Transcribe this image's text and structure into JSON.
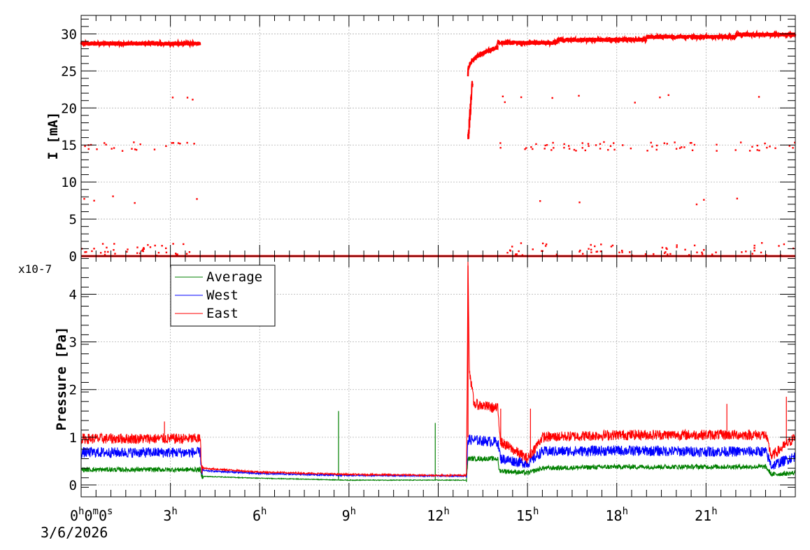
{
  "chart_data": [
    {
      "type": "scatter",
      "ylabel": "I [mA]",
      "ylim": [
        0,
        32.5
      ],
      "yticks": [
        0,
        5,
        10,
        15,
        20,
        25,
        30
      ],
      "xlim_hours": [
        0,
        24
      ],
      "grid": true,
      "series": [
        {
          "color": "#ff0000",
          "segments": [
            {
              "x": [
                0.0,
                4.0
              ],
              "y": 28.7
            },
            {
              "x": [
                13.0,
                14.0
              ],
              "y": [
                24.5,
                28.2
              ]
            },
            {
              "x": [
                14.0,
                16.0
              ],
              "y": 28.8
            },
            {
              "x": [
                16.0,
                19.0
              ],
              "y": 29.2
            },
            {
              "x": [
                19.0,
                22.0
              ],
              "y": 29.6
            },
            {
              "x": [
                22.0,
                24.0
              ],
              "y": 29.9
            }
          ],
          "outlier_levels": [
            21.3,
            14.8,
            7.5,
            1.0,
            0.0
          ],
          "gap_hours": [
            4.0,
            13.0
          ]
        }
      ]
    },
    {
      "type": "line",
      "ylabel": "Pressure [Pa]",
      "yexponent": "x10-7",
      "ylim": [
        -0.25,
        4.8
      ],
      "yticks": [
        0,
        1,
        2,
        3,
        4
      ],
      "xlim_hours": [
        0,
        24
      ],
      "grid": true,
      "legend": {
        "position": "top-left",
        "entries": [
          "Average",
          "West",
          "East"
        ]
      },
      "series": [
        {
          "name": "Average",
          "color": "#008000",
          "points": [
            [
              0,
              0.32
            ],
            [
              4,
              0.32
            ],
            [
              4.05,
              0.18
            ],
            [
              6,
              0.14
            ],
            [
              9,
              0.1
            ],
            [
              12,
              0.1
            ],
            [
              12.95,
              0.1
            ],
            [
              13.0,
              0.55
            ],
            [
              14,
              0.55
            ],
            [
              14.05,
              0.3
            ],
            [
              15,
              0.25
            ],
            [
              15.5,
              0.35
            ],
            [
              18,
              0.38
            ],
            [
              21,
              0.38
            ],
            [
              23,
              0.38
            ],
            [
              23.2,
              0.22
            ],
            [
              24,
              0.25
            ]
          ],
          "spikes": [
            [
              8.65,
              1.55
            ],
            [
              11.9,
              1.3
            ]
          ]
        },
        {
          "name": "West",
          "color": "#0000ff",
          "points": [
            [
              0,
              0.68
            ],
            [
              4,
              0.68
            ],
            [
              4.05,
              0.3
            ],
            [
              6,
              0.24
            ],
            [
              9,
              0.2
            ],
            [
              12,
              0.19
            ],
            [
              12.95,
              0.19
            ],
            [
              13.0,
              0.95
            ],
            [
              14,
              0.9
            ],
            [
              14.1,
              0.55
            ],
            [
              15,
              0.45
            ],
            [
              15.5,
              0.7
            ],
            [
              18,
              0.72
            ],
            [
              21,
              0.7
            ],
            [
              23,
              0.7
            ],
            [
              23.2,
              0.4
            ],
            [
              24,
              0.6
            ]
          ],
          "spikes": []
        },
        {
          "name": "East",
          "color": "#ff0000",
          "points": [
            [
              0,
              0.97
            ],
            [
              4,
              0.97
            ],
            [
              4.05,
              0.35
            ],
            [
              6,
              0.27
            ],
            [
              9,
              0.22
            ],
            [
              12,
              0.2
            ],
            [
              12.95,
              0.2
            ],
            [
              13.0,
              4.6
            ],
            [
              13.05,
              2.4
            ],
            [
              13.2,
              1.7
            ],
            [
              14,
              1.6
            ],
            [
              14.1,
              0.9
            ],
            [
              15,
              0.55
            ],
            [
              15.5,
              1.0
            ],
            [
              18,
              1.05
            ],
            [
              21,
              1.05
            ],
            [
              23,
              1.05
            ],
            [
              23.2,
              0.6
            ],
            [
              24,
              1.0
            ]
          ],
          "spikes": [
            [
              2.8,
              1.33
            ],
            [
              14.1,
              1.6
            ],
            [
              15.1,
              1.6
            ],
            [
              21.7,
              1.7
            ],
            [
              23.7,
              1.85
            ]
          ]
        }
      ]
    }
  ],
  "x_axis": {
    "ticks": [
      {
        "hours": 0,
        "label": "0",
        "sup": "h",
        "extra": "0m0s"
      },
      {
        "hours": 3,
        "label": "3",
        "sup": "h"
      },
      {
        "hours": 6,
        "label": "6",
        "sup": "h"
      },
      {
        "hours": 9,
        "label": "9",
        "sup": "h"
      },
      {
        "hours": 12,
        "label": "12",
        "sup": "h"
      },
      {
        "hours": 15,
        "label": "15",
        "sup": "h"
      },
      {
        "hours": 18,
        "label": "18",
        "sup": "h"
      },
      {
        "hours": 21,
        "label": "21",
        "sup": "h"
      }
    ],
    "date_label": "3/6/2026"
  }
}
